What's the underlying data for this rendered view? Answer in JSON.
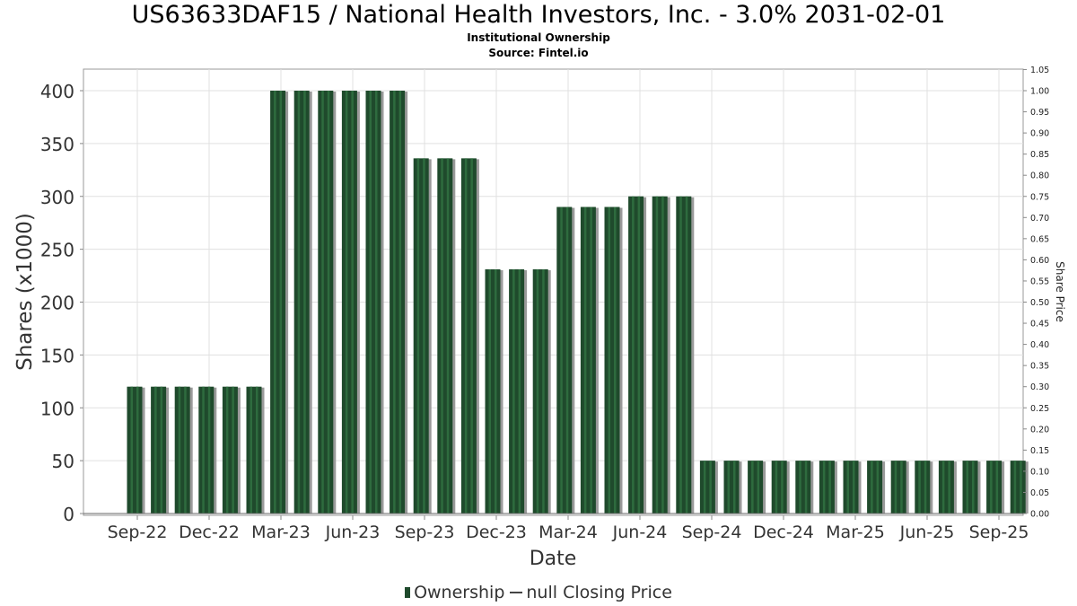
{
  "header": {
    "title": "US63633DAF15 / National Health Investors, Inc. - 3.0% 2031-02-01",
    "subtitle": "Institutional Ownership",
    "source": "Source: Fintel.io"
  },
  "legend": {
    "ownership": "Ownership",
    "price": "null Closing Price"
  },
  "colors": {
    "bar": "#1f4a2c",
    "bar_stripe": "#2e6b3e",
    "bar_shadow": "#9a9a9a",
    "grid": "#e0e0e0"
  },
  "chart_data": {
    "type": "bar",
    "xlabel": "Date",
    "ylabel": "Shares (x1000)",
    "y2label": "Share Price",
    "ylim": [
      0,
      420
    ],
    "y2lim": [
      0,
      1.05
    ],
    "yticks": [
      0,
      50,
      100,
      150,
      200,
      250,
      300,
      350,
      400
    ],
    "y2ticks": [
      "0.00",
      "0.05",
      "0.10",
      "0.15",
      "0.20",
      "0.25",
      "0.30",
      "0.35",
      "0.40",
      "0.45",
      "0.50",
      "0.55",
      "0.60",
      "0.65",
      "0.70",
      "0.75",
      "0.80",
      "0.85",
      "0.90",
      "0.95",
      "1.00",
      "1.05"
    ],
    "xticks": [
      "Sep-22",
      "Dec-22",
      "Mar-23",
      "Jun-23",
      "Sep-23",
      "Dec-23",
      "Mar-24",
      "Jun-24",
      "Sep-24",
      "Dec-24",
      "Mar-25",
      "Jun-25",
      "Sep-25"
    ],
    "series": [
      {
        "name": "Ownership",
        "values": [
          120,
          120,
          120,
          120,
          120,
          120,
          400,
          400,
          400,
          400,
          400,
          400,
          336,
          336,
          336,
          231,
          231,
          231,
          290,
          290,
          290,
          300,
          300,
          300,
          50,
          50,
          50,
          50,
          50,
          50,
          50,
          50,
          50,
          50,
          50,
          50,
          50,
          50
        ]
      }
    ],
    "grid": true,
    "legend_position": "bottom-center"
  }
}
